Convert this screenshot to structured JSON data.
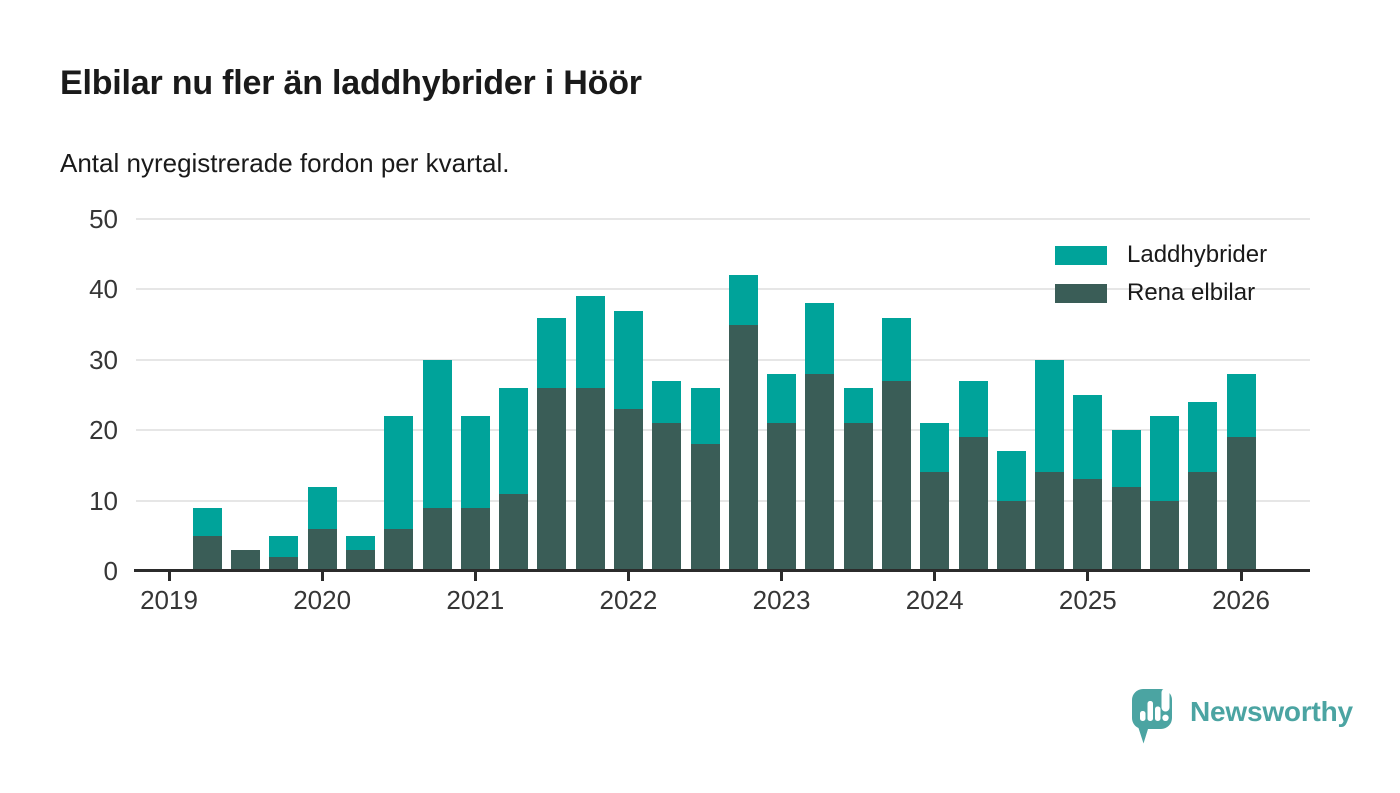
{
  "header": {
    "title": "Elbilar nu fler än laddhybrider i Höör",
    "subtitle": "Antal nyregistrerade fordon per kvartal."
  },
  "chart_data": {
    "type": "bar",
    "stacked": true,
    "title": "Elbilar nu fler än laddhybrider i Höör",
    "subtitle": "Antal nyregistrerade fordon per kvartal.",
    "categories": [
      "2019-Q1",
      "2019-Q2",
      "2019-Q3",
      "2019-Q4",
      "2020-Q1",
      "2020-Q2",
      "2020-Q3",
      "2020-Q4",
      "2021-Q1",
      "2021-Q2",
      "2021-Q3",
      "2021-Q4",
      "2022-Q1",
      "2022-Q2",
      "2022-Q3",
      "2022-Q4",
      "2023-Q1",
      "2023-Q2",
      "2023-Q3",
      "2023-Q4",
      "2024-Q1",
      "2024-Q2",
      "2024-Q3",
      "2024-Q4",
      "2025-Q1",
      "2025-Q2",
      "2025-Q3",
      "2025-Q4",
      "2026-Q1"
    ],
    "series": [
      {
        "name": "Laddhybrider",
        "color": "#00a39a",
        "values": [
          0,
          4,
          0,
          3,
          6,
          2,
          16,
          21,
          13,
          15,
          10,
          13,
          14,
          6,
          8,
          7,
          7,
          10,
          5,
          9,
          7,
          8,
          7,
          16,
          12,
          8,
          12,
          10,
          9
        ]
      },
      {
        "name": "Rena elbilar",
        "color": "#3a5d57",
        "values": [
          0,
          5,
          3,
          2,
          6,
          3,
          6,
          9,
          9,
          11,
          26,
          26,
          23,
          21,
          18,
          35,
          21,
          28,
          21,
          27,
          14,
          19,
          10,
          14,
          13,
          12,
          10,
          14,
          19
        ]
      }
    ],
    "stack_order_bottom_to_top": [
      "Rena elbilar",
      "Laddhybrider"
    ],
    "totals": [
      0,
      9,
      3,
      5,
      12,
      5,
      22,
      30,
      22,
      26,
      36,
      39,
      37,
      27,
      26,
      42,
      28,
      38,
      26,
      36,
      21,
      27,
      17,
      30,
      25,
      20,
      22,
      24,
      28
    ],
    "ylim": [
      0,
      50
    ],
    "yticks": [
      0,
      10,
      20,
      30,
      40,
      50
    ],
    "xtick_labels": [
      "2019",
      "2020",
      "2021",
      "2022",
      "2023",
      "2024",
      "2025",
      "2026"
    ],
    "xtick_category_indexes": [
      0,
      4,
      8,
      12,
      16,
      20,
      24,
      28
    ],
    "grid": "horizontal",
    "legend_position": "top-right"
  },
  "footer": {
    "brand": "Newsworthy"
  },
  "colors": {
    "laddhybrider": "#00a39a",
    "rena_elbilar": "#3a5d57",
    "grid": "#e6e6e6",
    "axis": "#2b2b2b",
    "axis_text": "#363636",
    "text": "#1a1a1a",
    "logo": "#4ba4a2",
    "background": "#ffffff"
  }
}
